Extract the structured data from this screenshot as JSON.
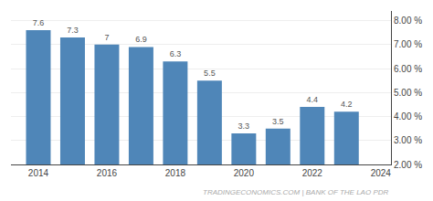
{
  "chart_data": {
    "type": "bar",
    "x": [
      2014,
      2015,
      2016,
      2017,
      2018,
      2019,
      2020,
      2021,
      2022,
      2023
    ],
    "values": [
      7.6,
      7.3,
      7.0,
      6.9,
      6.3,
      5.5,
      3.3,
      3.5,
      4.4,
      4.2
    ],
    "color": "#4f86b8",
    "data_labels": true,
    "xlim": [
      2013.2,
      2024.3
    ],
    "xticks": [
      2014,
      2016,
      2018,
      2020,
      2022,
      2024
    ],
    "ylim": [
      2.0,
      8.4
    ],
    "yticks": [
      {
        "value": 2.0,
        "label": "2.00 %"
      },
      {
        "value": 3.0,
        "label": "3.00 %"
      },
      {
        "value": 4.0,
        "label": "4.00 %"
      },
      {
        "value": 5.0,
        "label": "5.00 %"
      },
      {
        "value": 6.0,
        "label": "6.00 %"
      },
      {
        "value": 7.0,
        "label": "7.00 %"
      },
      {
        "value": 8.0,
        "label": "8.00 %"
      }
    ],
    "grid": true,
    "annotations": [
      {
        "text": "TRADINGECONOMICS.COM | BANK OF THE LAO PDR"
      }
    ]
  }
}
